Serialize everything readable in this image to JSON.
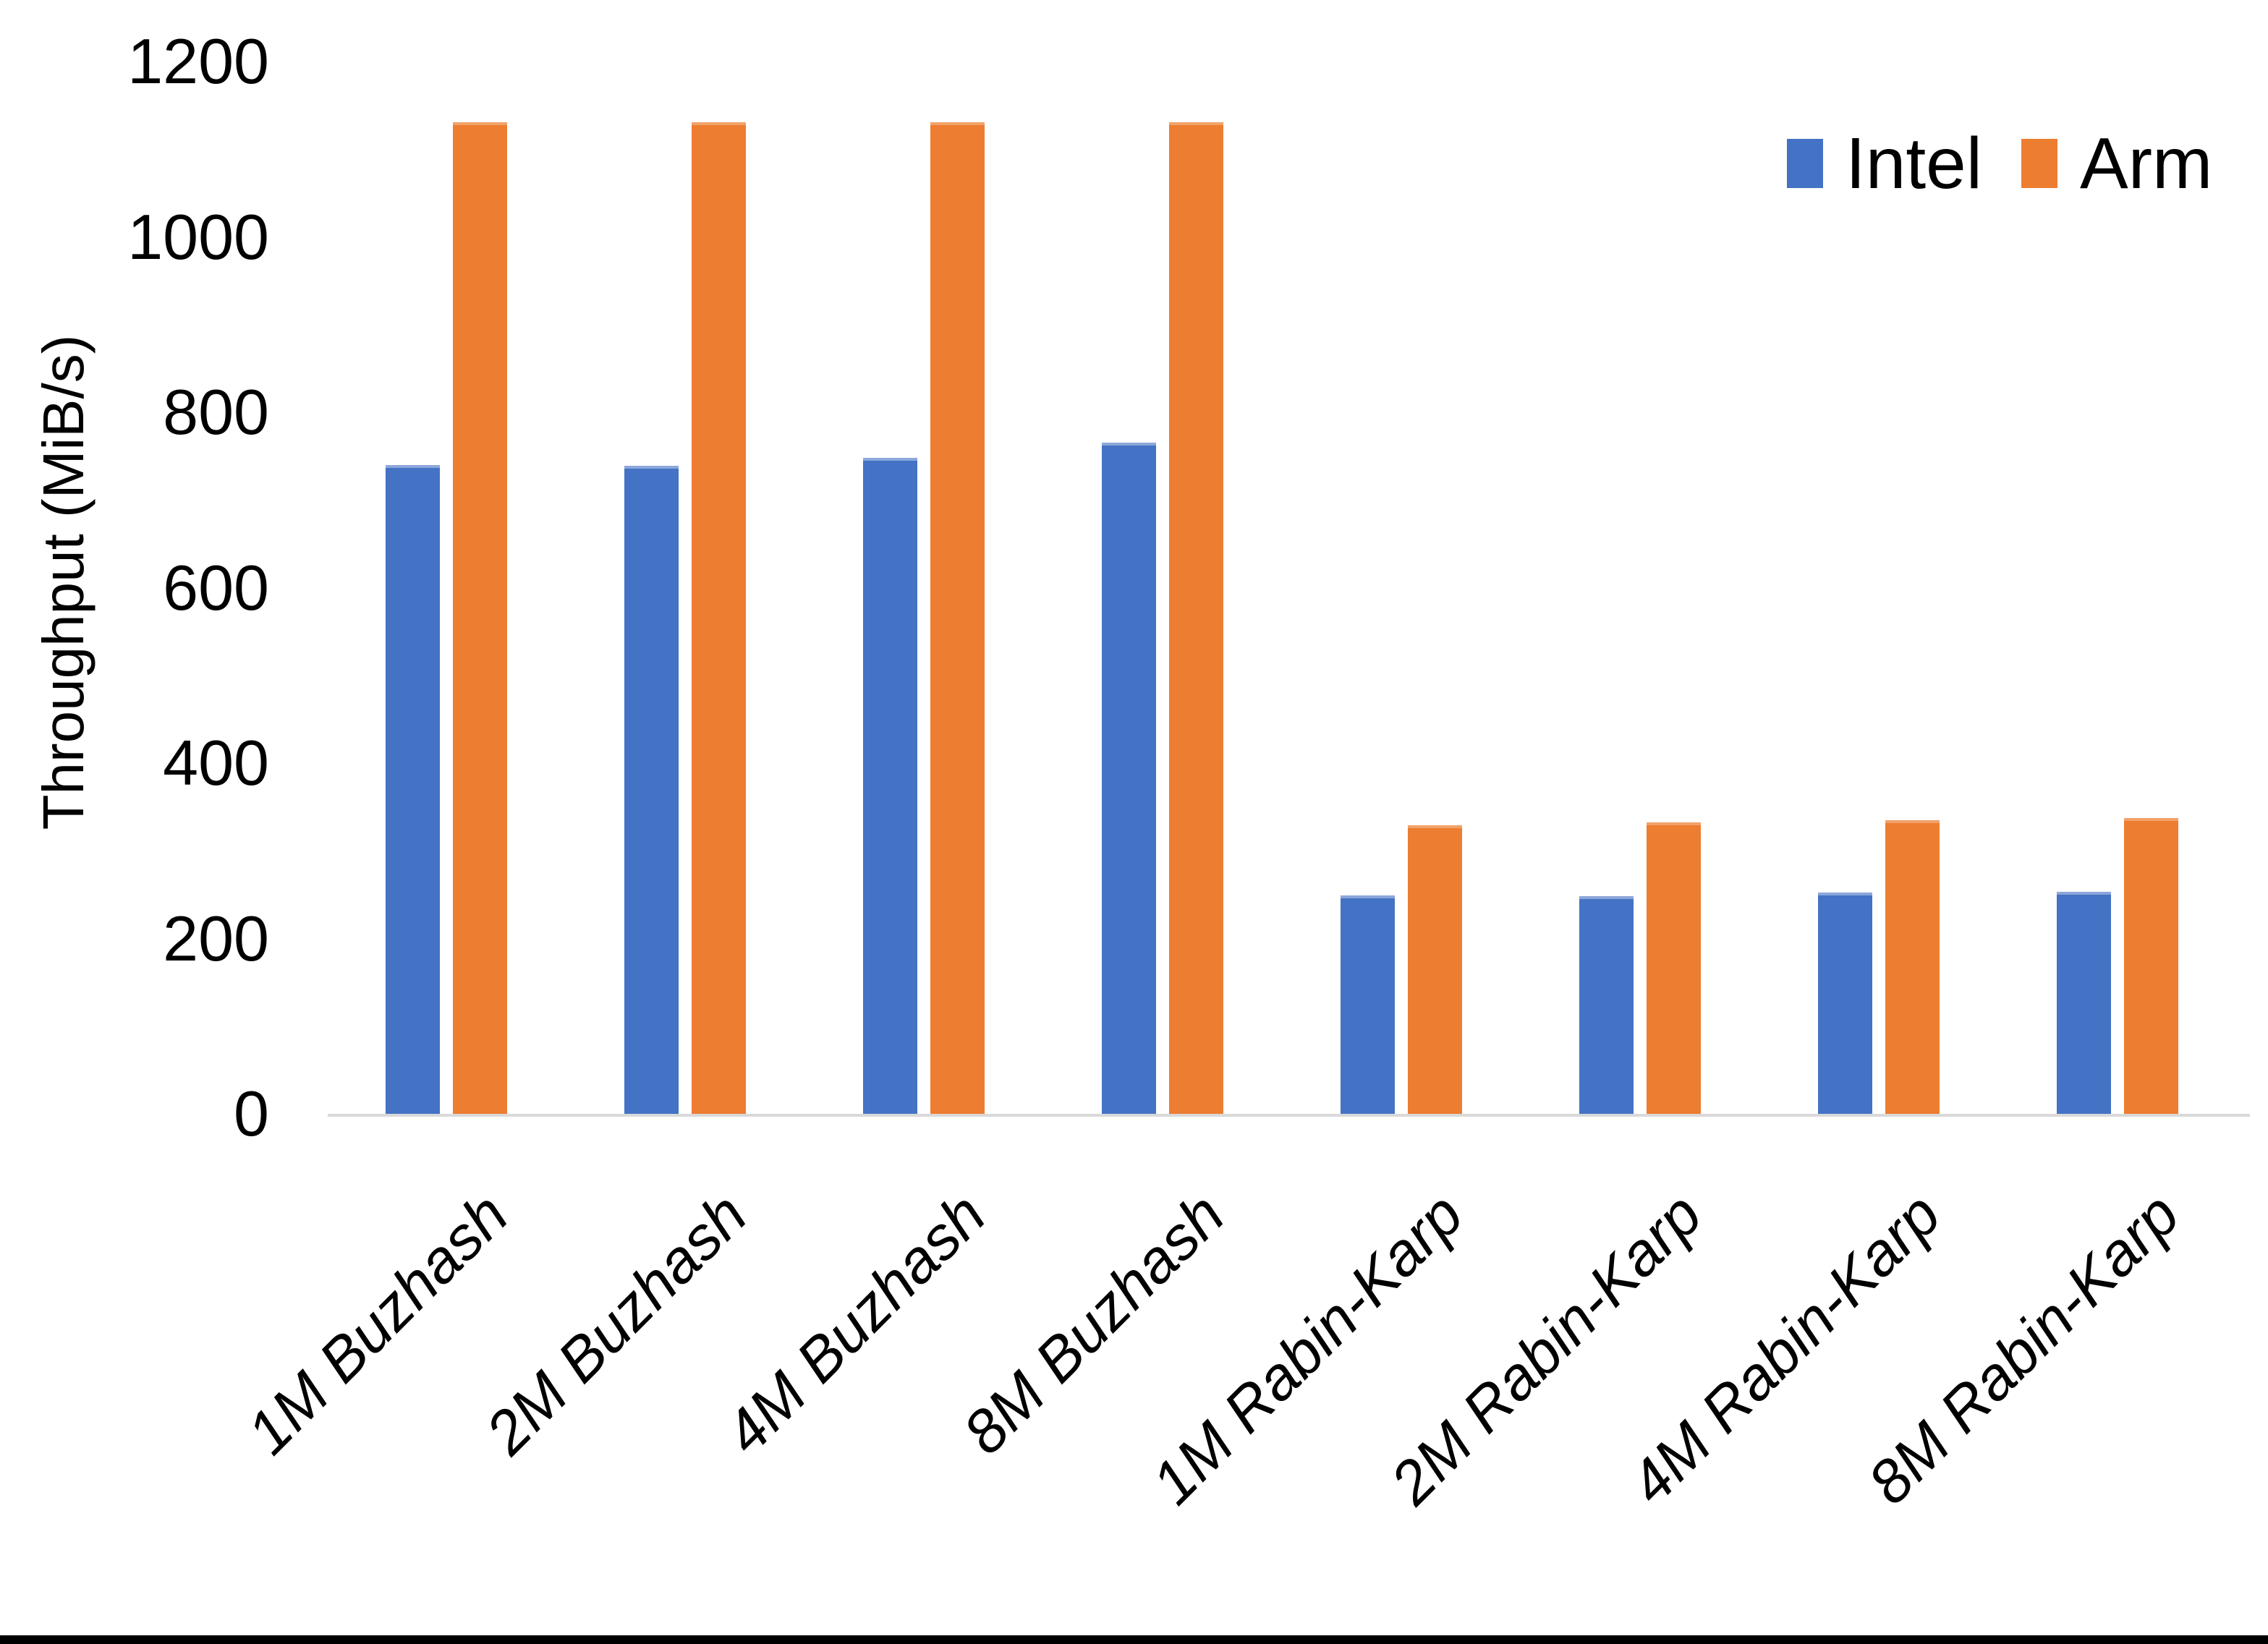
{
  "chart_data": {
    "type": "bar",
    "title": "",
    "xlabel": "",
    "ylabel": "Throughput (MiB/s)",
    "categories": [
      "1M Buzhash",
      "2M Buzhash",
      "4M Buzhash",
      "8M Buzhash",
      "1M Rabin-Karp",
      "2M Rabin-Karp",
      "4M Rabin-Karp",
      "8M Rabin-Karp"
    ],
    "series": [
      {
        "name": "Intel",
        "color": "#4472C4",
        "cap_color": "#8CA7DB",
        "values": [
          740,
          739,
          748,
          765,
          249,
          248,
          252,
          253
        ]
      },
      {
        "name": "Arm",
        "color": "#ED7D31",
        "cap_color": "#F2A269",
        "values": [
          1131,
          1131,
          1131,
          1131,
          329,
          332,
          335,
          337
        ]
      }
    ],
    "y_axis": {
      "min": 0,
      "max": 1200,
      "step": 200,
      "tick_labels": [
        "0",
        "200",
        "400",
        "600",
        "800",
        "1000",
        "1200"
      ]
    },
    "legend_position": "top-right",
    "grid": false
  },
  "colors": {
    "background": "#FFFFFF",
    "axis_line": "#D9D9D9",
    "text": "#000000",
    "bottom_border": "#000000"
  }
}
